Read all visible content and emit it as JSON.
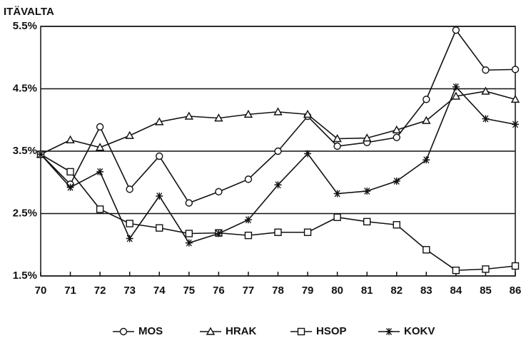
{
  "chart_data": {
    "type": "line",
    "title": "ITÄVALTA",
    "categories": [
      "70",
      "71",
      "72",
      "73",
      "74",
      "75",
      "76",
      "77",
      "78",
      "79",
      "80",
      "81",
      "82",
      "83",
      "84",
      "85",
      "86"
    ],
    "ylim": [
      1.5,
      5.5
    ],
    "yticks": [
      {
        "value": 1.5,
        "label": "1.5%"
      },
      {
        "value": 2.5,
        "label": "2.5%"
      },
      {
        "value": 3.5,
        "label": "3.5%"
      },
      {
        "value": 4.5,
        "label": "4.5%"
      },
      {
        "value": 5.5,
        "label": "5.5%"
      }
    ],
    "grid": true,
    "legend": "bottom",
    "series": [
      {
        "name": "MOS",
        "color": "#111111",
        "marker": "circle",
        "values": [
          3.45,
          2.97,
          3.89,
          2.89,
          3.42,
          2.67,
          2.85,
          3.05,
          3.5,
          4.06,
          3.58,
          3.64,
          3.72,
          4.33,
          5.44,
          4.8,
          4.81
        ]
      },
      {
        "name": "HRAK",
        "color": "#111111",
        "marker": "triangle",
        "values": [
          3.45,
          3.68,
          3.56,
          3.75,
          3.97,
          4.06,
          4.03,
          4.09,
          4.13,
          4.09,
          3.7,
          3.71,
          3.84,
          3.99,
          4.38,
          4.46,
          4.33
        ]
      },
      {
        "name": "HSOP",
        "color": "#111111",
        "marker": "square",
        "values": [
          3.45,
          3.17,
          2.57,
          2.34,
          2.27,
          2.18,
          2.19,
          2.15,
          2.2,
          2.2,
          2.44,
          2.37,
          2.32,
          1.92,
          1.59,
          1.61,
          1.66
        ]
      },
      {
        "name": "KOKV",
        "color": "#111111",
        "marker": "asterisk",
        "values": [
          3.45,
          2.92,
          3.17,
          2.1,
          2.78,
          2.03,
          2.18,
          2.4,
          2.96,
          3.46,
          2.82,
          2.86,
          3.02,
          3.36,
          4.53,
          4.02,
          3.93
        ]
      }
    ]
  }
}
